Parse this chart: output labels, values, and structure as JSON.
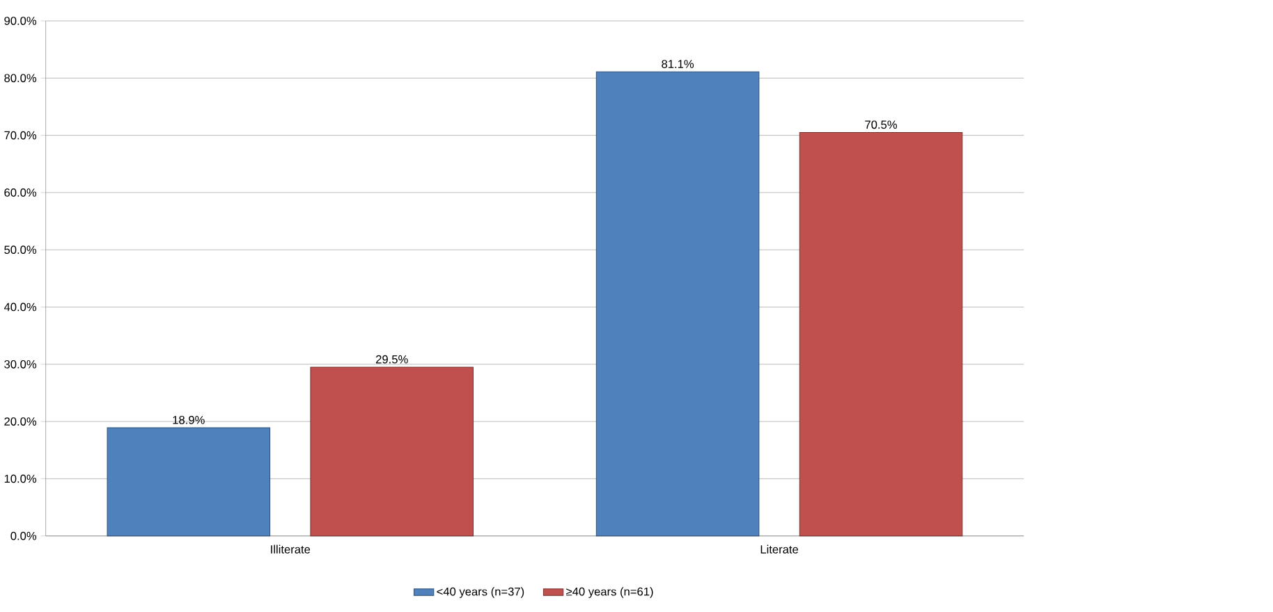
{
  "chart_data": {
    "type": "bar",
    "categories": [
      "Illiterate",
      "Literate"
    ],
    "series": [
      {
        "name": "<40 years (n=37)",
        "color": "#4f81bd",
        "values": [
          18.9,
          81.1
        ],
        "value_labels": [
          "18.9%",
          "81.1%"
        ]
      },
      {
        "name": "≥40 years (n=61)",
        "color": "#c0504d",
        "values": [
          29.5,
          70.5
        ],
        "value_labels": [
          "29.5%",
          "70.5%"
        ]
      }
    ],
    "ylim": [
      0,
      90
    ],
    "yticks": [
      {
        "value": 0,
        "label": "0.0%"
      },
      {
        "value": 10,
        "label": "10.0%"
      },
      {
        "value": 20,
        "label": "20.0%"
      },
      {
        "value": 30,
        "label": "30.0%"
      },
      {
        "value": 40,
        "label": "40.0%"
      },
      {
        "value": 50,
        "label": "50.0%"
      },
      {
        "value": 60,
        "label": "60.0%"
      },
      {
        "value": 70,
        "label": "70.0%"
      },
      {
        "value": 80,
        "label": "80.0%"
      },
      {
        "value": 90,
        "label": "90.0%"
      }
    ],
    "grid": "y",
    "legend": "bottom"
  }
}
